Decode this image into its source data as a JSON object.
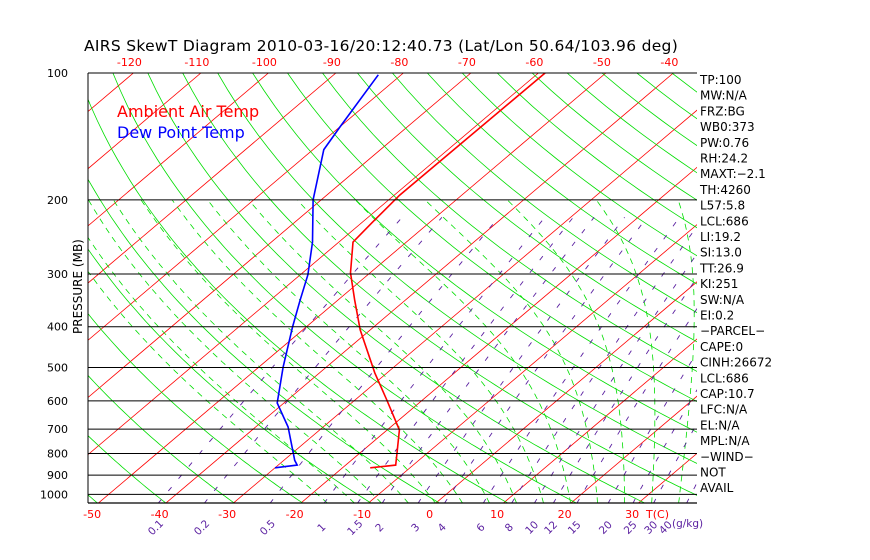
{
  "chart_data": {
    "type": "line",
    "subtype": "skew-t log-p",
    "title": "AIRS SkewT Diagram 2010-03-16/20:12:40.73 (Lat/Lon 50.64/103.96 deg)",
    "ylabel": "PRESSURE (MB)",
    "xlabel": "T(C)",
    "mixing_ratio_unit": "(g/kg)",
    "ylim": [
      1050,
      100
    ],
    "pressure_ticks": [
      100,
      200,
      300,
      400,
      500,
      600,
      700,
      800,
      900,
      1000
    ],
    "top_temp_ticks": [
      -120,
      -110,
      -100,
      -90,
      -80,
      -70,
      -60,
      -50,
      -40
    ],
    "bottom_temp_ticks": [
      -50,
      -40,
      -30,
      -20,
      -10,
      0,
      10,
      20,
      30
    ],
    "mixing_ratio_labels": [
      "0.1",
      "0.2",
      "0.5",
      "1",
      "1.5",
      "2",
      "3",
      "4",
      "6",
      "8",
      "10",
      "12",
      "15",
      "20",
      "25",
      "30",
      "40"
    ],
    "legend": [
      {
        "label": "Ambient Air Temp",
        "color": "#ff0000"
      },
      {
        "label": "Dew Point Temp",
        "color": "#0000ff"
      }
    ],
    "series": [
      {
        "name": "Ambient Air Temp",
        "color": "#ff0000",
        "points_p_T": [
          [
            865,
            -15.9
          ],
          [
            852,
            -12.6
          ],
          [
            798,
            -14.5
          ],
          [
            703,
            -18.2
          ],
          [
            597,
            -25.3
          ],
          [
            515,
            -31.8
          ],
          [
            407,
            -41.5
          ],
          [
            346,
            -47.5
          ],
          [
            298,
            -52.9
          ],
          [
            252,
            -57.9
          ],
          [
            226,
            -58.5
          ],
          [
            195,
            -59.2
          ],
          [
            100,
            -59.0
          ]
        ]
      },
      {
        "name": "Dew Point Temp",
        "color": "#0000ff",
        "points_p_T": [
          [
            865,
            -30.0
          ],
          [
            852,
            -27.2
          ],
          [
            830,
            -28.4
          ],
          [
            692,
            -35.2
          ],
          [
            607,
            -41.0
          ],
          [
            499,
            -46.4
          ],
          [
            401,
            -52.0
          ],
          [
            346,
            -55.6
          ],
          [
            301,
            -58.9
          ],
          [
            252,
            -63.9
          ],
          [
            200,
            -71.2
          ],
          [
            152,
            -78.4
          ],
          [
            134,
            -80.0
          ],
          [
            101,
            -83.4
          ]
        ]
      }
    ],
    "colors": {
      "isotherm": "#ff0000",
      "dry_adiabat": "#00dd00",
      "moist_adiabat": "#00dd00",
      "mixing_ratio": "#5a1fa0",
      "grid": "#000000"
    }
  },
  "stats_panel": [
    "TP:100",
    "MW:N/A",
    "FRZ:BG",
    "WB0:373",
    "PW:0.76",
    "RH:24.2",
    "MAXT:−2.1",
    "TH:4260",
    "L57:5.8",
    "LCL:686",
    "LI:19.2",
    "SI:13.0",
    "TT:26.9",
    "KI:251",
    "SW:N/A",
    "EI:0.2",
    "−PARCEL−",
    "CAPE:0",
    "CINH:26672",
    "LCL:686",
    "CAP:10.7",
    "LFC:N/A",
    "EL:N/A",
    "MPL:N/A",
    "−WIND−",
    "NOT",
    "AVAIL"
  ]
}
